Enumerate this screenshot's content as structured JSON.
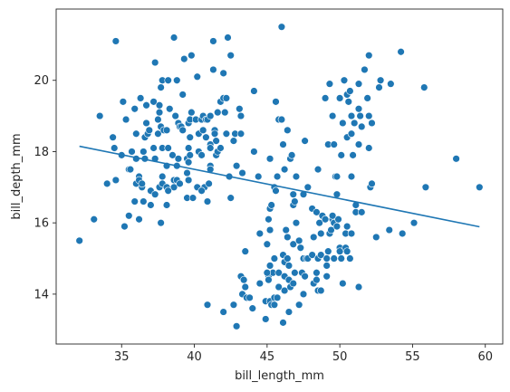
{
  "chart_data": {
    "type": "scatter",
    "title": "",
    "xlabel": "bill_length_mm",
    "ylabel": "bill_depth_mm",
    "xlim": [
      30.5,
      61.2
    ],
    "ylim": [
      12.6,
      22.0
    ],
    "xticks": [
      35,
      40,
      45,
      50,
      55,
      60
    ],
    "yticks": [
      14,
      16,
      18,
      20
    ],
    "grid": false,
    "legend": "none",
    "marker_color": "#1f77b4",
    "line_color": "#1f77b4",
    "points": [
      [
        32.1,
        15.5
      ],
      [
        33.1,
        16.1
      ],
      [
        33.5,
        19.0
      ],
      [
        34.0,
        17.1
      ],
      [
        34.4,
        18.4
      ],
      [
        34.5,
        18.1
      ],
      [
        34.6,
        17.2
      ],
      [
        34.6,
        21.1
      ],
      [
        35.0,
        17.9
      ],
      [
        35.1,
        19.4
      ],
      [
        35.2,
        15.9
      ],
      [
        35.3,
        18.9
      ],
      [
        35.5,
        17.5
      ],
      [
        35.5,
        16.2
      ],
      [
        35.6,
        17.5
      ],
      [
        35.7,
        18.0
      ],
      [
        35.9,
        19.2
      ],
      [
        35.9,
        16.6
      ],
      [
        36.0,
        18.5
      ],
      [
        36.0,
        17.1
      ],
      [
        36.0,
        17.8
      ],
      [
        36.2,
        17.3
      ],
      [
        36.2,
        16.1
      ],
      [
        36.2,
        17.2
      ],
      [
        36.3,
        19.5
      ],
      [
        36.4,
        17.0
      ],
      [
        36.4,
        17.1
      ],
      [
        36.5,
        18.0
      ],
      [
        36.5,
        16.6
      ],
      [
        36.6,
        17.8
      ],
      [
        36.6,
        18.4
      ],
      [
        36.7,
        18.8
      ],
      [
        36.7,
        19.3
      ],
      [
        36.8,
        18.5
      ],
      [
        36.9,
        18.6
      ],
      [
        37.0,
        16.9
      ],
      [
        37.0,
        16.5
      ],
      [
        37.2,
        18.1
      ],
      [
        37.2,
        19.4
      ],
      [
        37.3,
        17.8
      ],
      [
        37.3,
        20.5
      ],
      [
        37.3,
        16.8
      ],
      [
        37.5,
        18.9
      ],
      [
        37.5,
        18.5
      ],
      [
        37.6,
        19.3
      ],
      [
        37.6,
        17.0
      ],
      [
        37.6,
        19.1
      ],
      [
        37.7,
        18.7
      ],
      [
        37.7,
        16.0
      ],
      [
        37.7,
        19.8
      ],
      [
        37.8,
        17.3
      ],
      [
        37.8,
        18.1
      ],
      [
        37.8,
        17.1
      ],
      [
        37.8,
        20.0
      ],
      [
        37.9,
        18.6
      ],
      [
        38.1,
        18.6
      ],
      [
        38.1,
        17.6
      ],
      [
        38.1,
        17.0
      ],
      [
        38.1,
        16.5
      ],
      [
        38.2,
        18.1
      ],
      [
        38.2,
        20.0
      ],
      [
        38.3,
        19.2
      ],
      [
        38.5,
        17.9
      ],
      [
        38.6,
        21.2
      ],
      [
        38.6,
        17.2
      ],
      [
        38.6,
        17.0
      ],
      [
        38.7,
        19.0
      ],
      [
        38.8,
        17.2
      ],
      [
        38.8,
        20.0
      ],
      [
        38.8,
        17.6
      ],
      [
        38.9,
        17.8
      ],
      [
        38.9,
        18.8
      ],
      [
        39.0,
        17.1
      ],
      [
        39.0,
        18.7
      ],
      [
        39.1,
        18.7
      ],
      [
        39.2,
        19.6
      ],
      [
        39.2,
        18.6
      ],
      [
        39.3,
        20.6
      ],
      [
        39.5,
        17.4
      ],
      [
        39.5,
        16.7
      ],
      [
        39.5,
        17.8
      ],
      [
        39.6,
        17.7
      ],
      [
        39.6,
        18.8
      ],
      [
        39.6,
        17.2
      ],
      [
        39.6,
        18.1
      ],
      [
        39.7,
        18.4
      ],
      [
        39.7,
        17.9
      ],
      [
        39.7,
        18.9
      ],
      [
        39.8,
        19.1
      ],
      [
        39.8,
        20.7
      ],
      [
        40.1,
        18.9
      ],
      [
        40.2,
        17.0
      ],
      [
        40.2,
        20.1
      ],
      [
        40.3,
        18.0
      ],
      [
        40.3,
        18.5
      ],
      [
        40.5,
        17.9
      ],
      [
        40.5,
        18.9
      ],
      [
        40.6,
        18.6
      ],
      [
        40.6,
        19.0
      ],
      [
        40.7,
        17.0
      ],
      [
        40.8,
        18.4
      ],
      [
        40.8,
        18.9
      ],
      [
        40.9,
        18.9
      ],
      [
        40.9,
        16.6
      ],
      [
        41.0,
        17.1
      ],
      [
        41.1,
        17.6
      ],
      [
        41.1,
        18.2
      ],
      [
        41.1,
        19.0
      ],
      [
        41.1,
        18.1
      ],
      [
        41.1,
        17.5
      ],
      [
        41.3,
        20.3
      ],
      [
        41.3,
        21.1
      ],
      [
        41.4,
        18.6
      ],
      [
        41.4,
        18.5
      ],
      [
        41.5,
        17.9
      ],
      [
        41.5,
        18.3
      ],
      [
        41.6,
        18.0
      ],
      [
        41.6,
        19.1
      ],
      [
        41.8,
        19.4
      ],
      [
        41.8,
        18.1
      ],
      [
        42.0,
        19.5
      ],
      [
        42.0,
        20.2
      ],
      [
        42.1,
        19.1
      ],
      [
        42.2,
        18.5
      ],
      [
        42.2,
        19.5
      ],
      [
        42.3,
        21.2
      ],
      [
        42.4,
        17.3
      ],
      [
        42.5,
        20.7
      ],
      [
        42.5,
        16.7
      ],
      [
        42.7,
        18.3
      ],
      [
        42.8,
        18.5
      ],
      [
        42.9,
        17.6
      ],
      [
        43.1,
        19.2
      ],
      [
        43.2,
        18.5
      ],
      [
        43.2,
        19.0
      ],
      [
        43.3,
        17.4
      ],
      [
        44.1,
        19.7
      ],
      [
        44.1,
        18.0
      ],
      [
        45.2,
        17.8
      ],
      [
        45.5,
        17.0
      ],
      [
        45.6,
        19.4
      ],
      [
        45.7,
        17.3
      ],
      [
        45.8,
        18.9
      ],
      [
        46.0,
        18.9
      ],
      [
        46.1,
        18.2
      ],
      [
        46.4,
        18.6
      ],
      [
        46.6,
        17.8
      ],
      [
        46.7,
        17.9
      ],
      [
        46.8,
        16.5
      ],
      [
        46.9,
        16.6
      ],
      [
        47.0,
        17.3
      ],
      [
        47.5,
        16.8
      ],
      [
        47.6,
        18.3
      ],
      [
        48.1,
        16.4
      ],
      [
        48.5,
        17.5
      ],
      [
        49.0,
        19.5
      ],
      [
        49.2,
        18.2
      ],
      [
        49.3,
        19.9
      ],
      [
        49.5,
        19.0
      ],
      [
        49.6,
        18.2
      ],
      [
        49.7,
        17.3
      ],
      [
        49.8,
        17.3
      ],
      [
        50.0,
        19.5
      ],
      [
        50.1,
        17.9
      ],
      [
        50.2,
        18.8
      ],
      [
        50.3,
        20.0
      ],
      [
        50.5,
        18.4
      ],
      [
        50.5,
        19.6
      ],
      [
        50.6,
        19.4
      ],
      [
        50.7,
        19.7
      ],
      [
        50.8,
        18.5
      ],
      [
        50.8,
        19.0
      ],
      [
        50.9,
        17.9
      ],
      [
        51.0,
        18.8
      ],
      [
        51.3,
        18.2
      ],
      [
        51.3,
        19.2
      ],
      [
        51.3,
        19.9
      ],
      [
        51.4,
        19.0
      ],
      [
        51.5,
        18.7
      ],
      [
        51.7,
        20.3
      ],
      [
        51.9,
        19.5
      ],
      [
        52.0,
        18.1
      ],
      [
        52.0,
        19.0
      ],
      [
        52.0,
        20.7
      ],
      [
        52.2,
        18.8
      ],
      [
        52.7,
        19.8
      ],
      [
        52.8,
        20.0
      ],
      [
        53.5,
        19.9
      ],
      [
        54.2,
        20.8
      ],
      [
        55.8,
        19.8
      ],
      [
        58.0,
        17.8
      ],
      [
        40.9,
        13.7
      ],
      [
        42.0,
        13.5
      ],
      [
        42.7,
        13.7
      ],
      [
        42.9,
        13.1
      ],
      [
        43.2,
        14.5
      ],
      [
        43.3,
        14.0
      ],
      [
        43.4,
        14.4
      ],
      [
        43.5,
        14.2
      ],
      [
        43.5,
        15.2
      ],
      [
        43.6,
        13.9
      ],
      [
        43.8,
        13.9
      ],
      [
        44.0,
        13.6
      ],
      [
        44.4,
        17.3
      ],
      [
        44.5,
        14.3
      ],
      [
        44.5,
        15.7
      ],
      [
        44.9,
        13.8
      ],
      [
        44.9,
        13.3
      ],
      [
        45.0,
        15.4
      ],
      [
        45.1,
        14.5
      ],
      [
        45.1,
        14.4
      ],
      [
        45.2,
        16.4
      ],
      [
        45.2,
        15.8
      ],
      [
        45.2,
        14.8
      ],
      [
        45.2,
        13.8
      ],
      [
        45.3,
        13.7
      ],
      [
        45.4,
        14.6
      ],
      [
        45.5,
        13.7
      ],
      [
        45.5,
        13.9
      ],
      [
        45.5,
        15.0
      ],
      [
        45.7,
        13.9
      ],
      [
        45.8,
        14.6
      ],
      [
        45.8,
        14.2
      ],
      [
        46.1,
        13.2
      ],
      [
        46.1,
        15.1
      ],
      [
        46.2,
        14.5
      ],
      [
        46.2,
        14.1
      ],
      [
        46.2,
        14.9
      ],
      [
        46.3,
        15.8
      ],
      [
        46.4,
        15.0
      ],
      [
        46.4,
        15.6
      ],
      [
        46.5,
        14.8
      ],
      [
        46.5,
        13.5
      ],
      [
        46.5,
        14.4
      ],
      [
        46.6,
        14.2
      ],
      [
        46.8,
        14.3
      ],
      [
        46.8,
        15.4
      ],
      [
        46.9,
        14.6
      ],
      [
        47.0,
        16.0
      ],
      [
        47.2,
        13.7
      ],
      [
        47.2,
        15.5
      ],
      [
        47.3,
        15.3
      ],
      [
        47.4,
        14.6
      ],
      [
        47.5,
        14.0
      ],
      [
        47.5,
        15.0
      ],
      [
        47.6,
        14.5
      ],
      [
        47.7,
        15.0
      ],
      [
        47.8,
        15.0
      ],
      [
        48.1,
        15.1
      ],
      [
        48.2,
        14.3
      ],
      [
        48.2,
        15.6
      ],
      [
        48.4,
        14.6
      ],
      [
        48.4,
        14.4
      ],
      [
        48.4,
        16.3
      ],
      [
        48.5,
        14.1
      ],
      [
        48.5,
        15.0
      ],
      [
        48.6,
        16.0
      ],
      [
        48.7,
        14.1
      ],
      [
        48.7,
        15.1
      ],
      [
        48.7,
        15.7
      ],
      [
        48.8,
        16.2
      ],
      [
        49.0,
        16.1
      ],
      [
        49.1,
        14.5
      ],
      [
        49.1,
        15.0
      ],
      [
        49.1,
        14.8
      ],
      [
        49.2,
        15.2
      ],
      [
        49.3,
        15.7
      ],
      [
        49.4,
        15.8
      ],
      [
        49.5,
        16.1
      ],
      [
        49.5,
        16.2
      ],
      [
        49.6,
        16.0
      ],
      [
        49.6,
        15.0
      ],
      [
        49.8,
        15.9
      ],
      [
        49.8,
        16.8
      ],
      [
        49.9,
        16.1
      ],
      [
        50.0,
        15.3
      ],
      [
        50.0,
        15.2
      ],
      [
        50.1,
        15.0
      ],
      [
        50.2,
        14.3
      ],
      [
        50.4,
        15.3
      ],
      [
        50.4,
        15.7
      ],
      [
        50.5,
        15.2
      ],
      [
        50.5,
        15.9
      ],
      [
        50.7,
        15.0
      ],
      [
        50.8,
        15.7
      ],
      [
        50.8,
        17.3
      ],
      [
        51.1,
        16.3
      ],
      [
        51.1,
        16.5
      ],
      [
        51.5,
        16.3
      ],
      [
        52.1,
        17.0
      ],
      [
        52.2,
        17.1
      ],
      [
        52.5,
        15.6
      ],
      [
        53.4,
        15.8
      ],
      [
        54.3,
        15.7
      ],
      [
        55.1,
        16.0
      ],
      [
        55.9,
        17.0
      ],
      [
        59.6,
        17.0
      ],
      [
        45.1,
        16.1
      ],
      [
        45.6,
        16.9
      ],
      [
        46.2,
        17.5
      ],
      [
        46.8,
        16.8
      ],
      [
        47.8,
        17.0
      ],
      [
        51.3,
        14.2
      ],
      [
        45.0,
        14.6
      ],
      [
        45.3,
        16.5
      ],
      [
        46.0,
        21.5
      ],
      [
        38.2,
        16.9
      ],
      [
        39.9,
        16.7
      ],
      [
        40.5,
        16.9
      ]
    ],
    "regression_line": {
      "x": [
        32.1,
        59.6
      ],
      "y": [
        18.15,
        15.89
      ]
    }
  }
}
